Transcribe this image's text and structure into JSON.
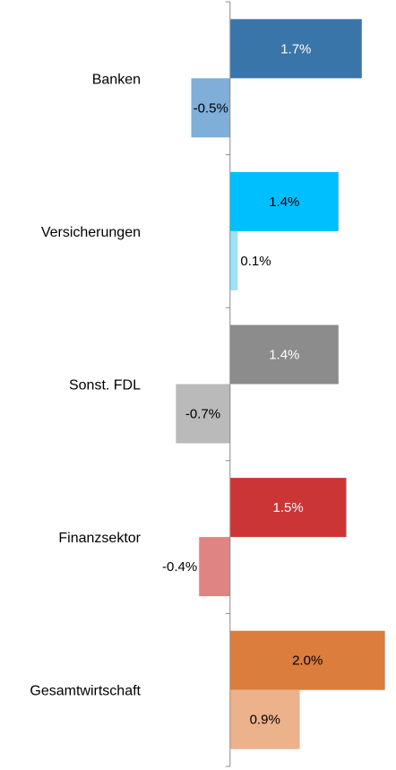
{
  "chart_data": {
    "type": "bar",
    "orientation": "horizontal",
    "categories": [
      "Banken",
      "Versicherungen",
      "Sonst. FDL",
      "Finanzsektor",
      "Gesamtwirtschaft"
    ],
    "series": [
      {
        "values": [
          1.7,
          1.4,
          1.4,
          1.5,
          2.0
        ],
        "value_labels": [
          "1.7%",
          "1.4%",
          "1.4%",
          "1.5%",
          "2.0%"
        ],
        "colors": [
          "#3a75aa",
          "#00bfff",
          "#8c8c8c",
          "#cc3536",
          "#db7d3c"
        ],
        "label_colors": [
          "#ffffff",
          "#000000",
          "#ffffff",
          "#ffffff",
          "#000000"
        ]
      },
      {
        "values": [
          -0.5,
          0.1,
          -0.7,
          -0.4,
          0.9
        ],
        "value_labels": [
          "-0.5%",
          "0.1%",
          "-0.7%",
          "-0.4%",
          "0.9%"
        ],
        "colors": [
          "#7faed9",
          "#9de3f7",
          "#bababa",
          "#e08483",
          "#ecb28b"
        ],
        "label_colors": [
          "#000000",
          "#000000",
          "#000000",
          "#000000",
          "#000000"
        ]
      }
    ],
    "xlim": [
      -2.97,
      2.05
    ],
    "grid": false,
    "legend": "none",
    "title": "",
    "xlabel": "",
    "ylabel": ""
  }
}
